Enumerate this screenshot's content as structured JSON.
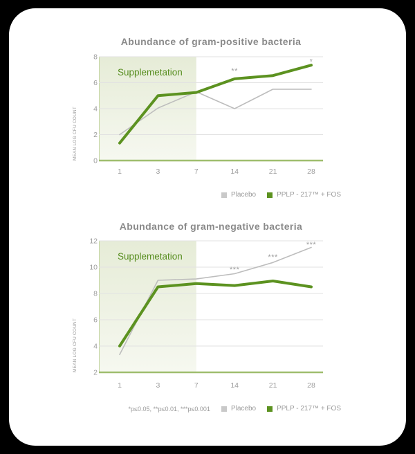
{
  "colors": {
    "background": "#000000",
    "card": "#ffffff",
    "title": "#8a8a8a",
    "tick": "#9c9c9c",
    "grid": "#e2e2e2",
    "axis_green": "#9fbe6e",
    "region_top": "#e6ecd7",
    "region_bottom": "#f6f8f0",
    "region_edge": "#c4d5a2",
    "region_text": "#578d1f",
    "placebo_line": "#bdbdbd",
    "pplp_line": "#5c9220",
    "stars": "#9e9e9e",
    "legend_text": "#9b9b9b"
  },
  "legend": {
    "items": [
      {
        "key": "placebo",
        "label": "Placebo",
        "color": "#c9c9c9"
      },
      {
        "key": "pplp",
        "label": "PPLP - 217™ + FOS",
        "color": "#5c9220"
      }
    ]
  },
  "footnote": "*p≤0.05, **p≤0.01, ***p≤0.001",
  "chart_data": [
    {
      "type": "line",
      "title": "Abundance of gram-positive bacteria",
      "xlabel": "",
      "ylabel": "MEAN LOG CFU COUNT",
      "region_label": "Supplemetation",
      "region_end_index": 2,
      "x_categories": [
        1,
        3,
        7,
        14,
        21,
        28
      ],
      "ylim": [
        0,
        8
      ],
      "yticks": [
        0,
        2,
        4,
        6,
        8
      ],
      "grid": true,
      "legend_position": "bottom-right",
      "series": [
        {
          "key": "placebo",
          "name": "Placebo",
          "color": "#bdbdbd",
          "width": 1.6,
          "values": [
            2.0,
            4.05,
            5.3,
            4.0,
            5.5,
            5.5
          ]
        },
        {
          "key": "pplp",
          "name": "PPLP - 217™ + FOS",
          "color": "#5c9220",
          "width": 4,
          "values": [
            1.35,
            5.0,
            5.25,
            6.3,
            6.55,
            7.35
          ]
        }
      ],
      "annotations": [
        {
          "x_index": 3,
          "y": 7.05,
          "text": "**"
        },
        {
          "x_index": 5,
          "y": 7.75,
          "text": "*"
        }
      ]
    },
    {
      "type": "line",
      "title": "Abundance of gram-negative bacteria",
      "xlabel": "",
      "ylabel": "MEAN LOG CFU COUNT",
      "region_label": "Supplemetation",
      "region_end_index": 2,
      "x_categories": [
        1,
        3,
        7,
        14,
        21,
        28
      ],
      "ylim": [
        2,
        12
      ],
      "yticks": [
        2,
        4,
        6,
        8,
        10,
        12
      ],
      "grid": true,
      "legend_position": "bottom-right",
      "series": [
        {
          "key": "placebo",
          "name": "Placebo",
          "color": "#bdbdbd",
          "width": 1.6,
          "values": [
            3.35,
            9.0,
            9.1,
            9.5,
            10.35,
            11.5
          ]
        },
        {
          "key": "pplp",
          "name": "PPLP - 217™ + FOS",
          "color": "#5c9220",
          "width": 4,
          "values": [
            4.0,
            8.5,
            8.75,
            8.6,
            8.95,
            8.5
          ]
        }
      ],
      "annotations": [
        {
          "x_index": 3,
          "y": 9.95,
          "text": "***"
        },
        {
          "x_index": 4,
          "y": 10.9,
          "text": "***"
        },
        {
          "x_index": 5,
          "y": 11.85,
          "text": "***"
        }
      ]
    }
  ]
}
